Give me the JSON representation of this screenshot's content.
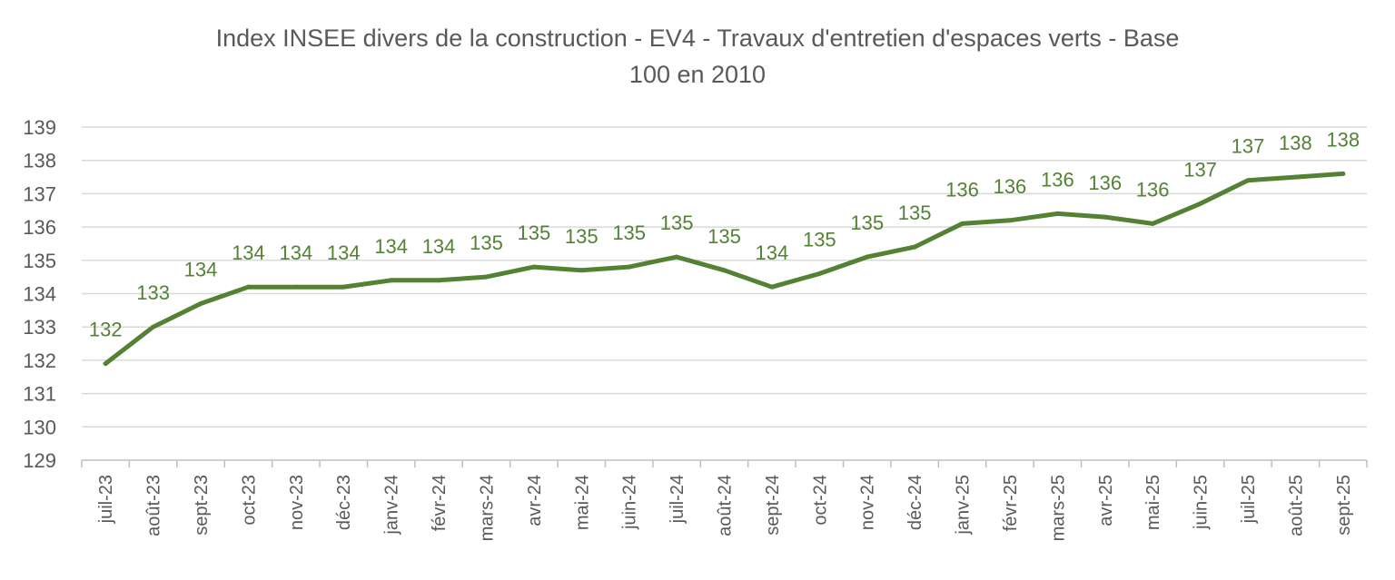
{
  "chart_data": {
    "type": "line",
    "title_lines": [
      "Index INSEE divers de la construction - EV4 - Travaux d'entretien d'espaces verts - Base",
      "100 en 2010"
    ],
    "categories": [
      "juil-23",
      "août-23",
      "sept-23",
      "oct-23",
      "nov-23",
      "déc-23",
      "janv-24",
      "févr-24",
      "mars-24",
      "avr-24",
      "mai-24",
      "juin-24",
      "juil-24",
      "août-24",
      "sept-24",
      "oct-24",
      "nov-24",
      "déc-24",
      "janv-25",
      "févr-25",
      "mars-25",
      "avr-25",
      "mai-25",
      "juin-25",
      "juil-25",
      "août-25",
      "sept-25"
    ],
    "series": [
      {
        "values": [
          131.9,
          133.0,
          133.7,
          134.2,
          134.2,
          134.2,
          134.4,
          134.4,
          134.5,
          134.8,
          134.7,
          134.8,
          135.1,
          134.7,
          134.2,
          134.6,
          135.1,
          135.4,
          136.1,
          136.2,
          136.4,
          136.3,
          136.1,
          136.7,
          137.4,
          137.5,
          137.6
        ],
        "data_labels": [
          "132",
          "133",
          "134",
          "134",
          "134",
          "134",
          "134",
          "134",
          "135",
          "135",
          "135",
          "135",
          "135",
          "135",
          "134",
          "135",
          "135",
          "135",
          "136",
          "136",
          "136",
          "136",
          "136",
          "137",
          "137",
          "138",
          "138"
        ]
      }
    ],
    "y_ticks": [
      "129",
      "130",
      "131",
      "132",
      "133",
      "134",
      "135",
      "136",
      "137",
      "138",
      "139"
    ],
    "ylim": [
      129,
      139
    ],
    "grid": true,
    "legend": "none",
    "xlabel": "",
    "ylabel": "",
    "colors": {
      "line": "#548235",
      "grid": "#d9d9d9",
      "axis": "#bfbfbf",
      "text": "#595959"
    }
  }
}
